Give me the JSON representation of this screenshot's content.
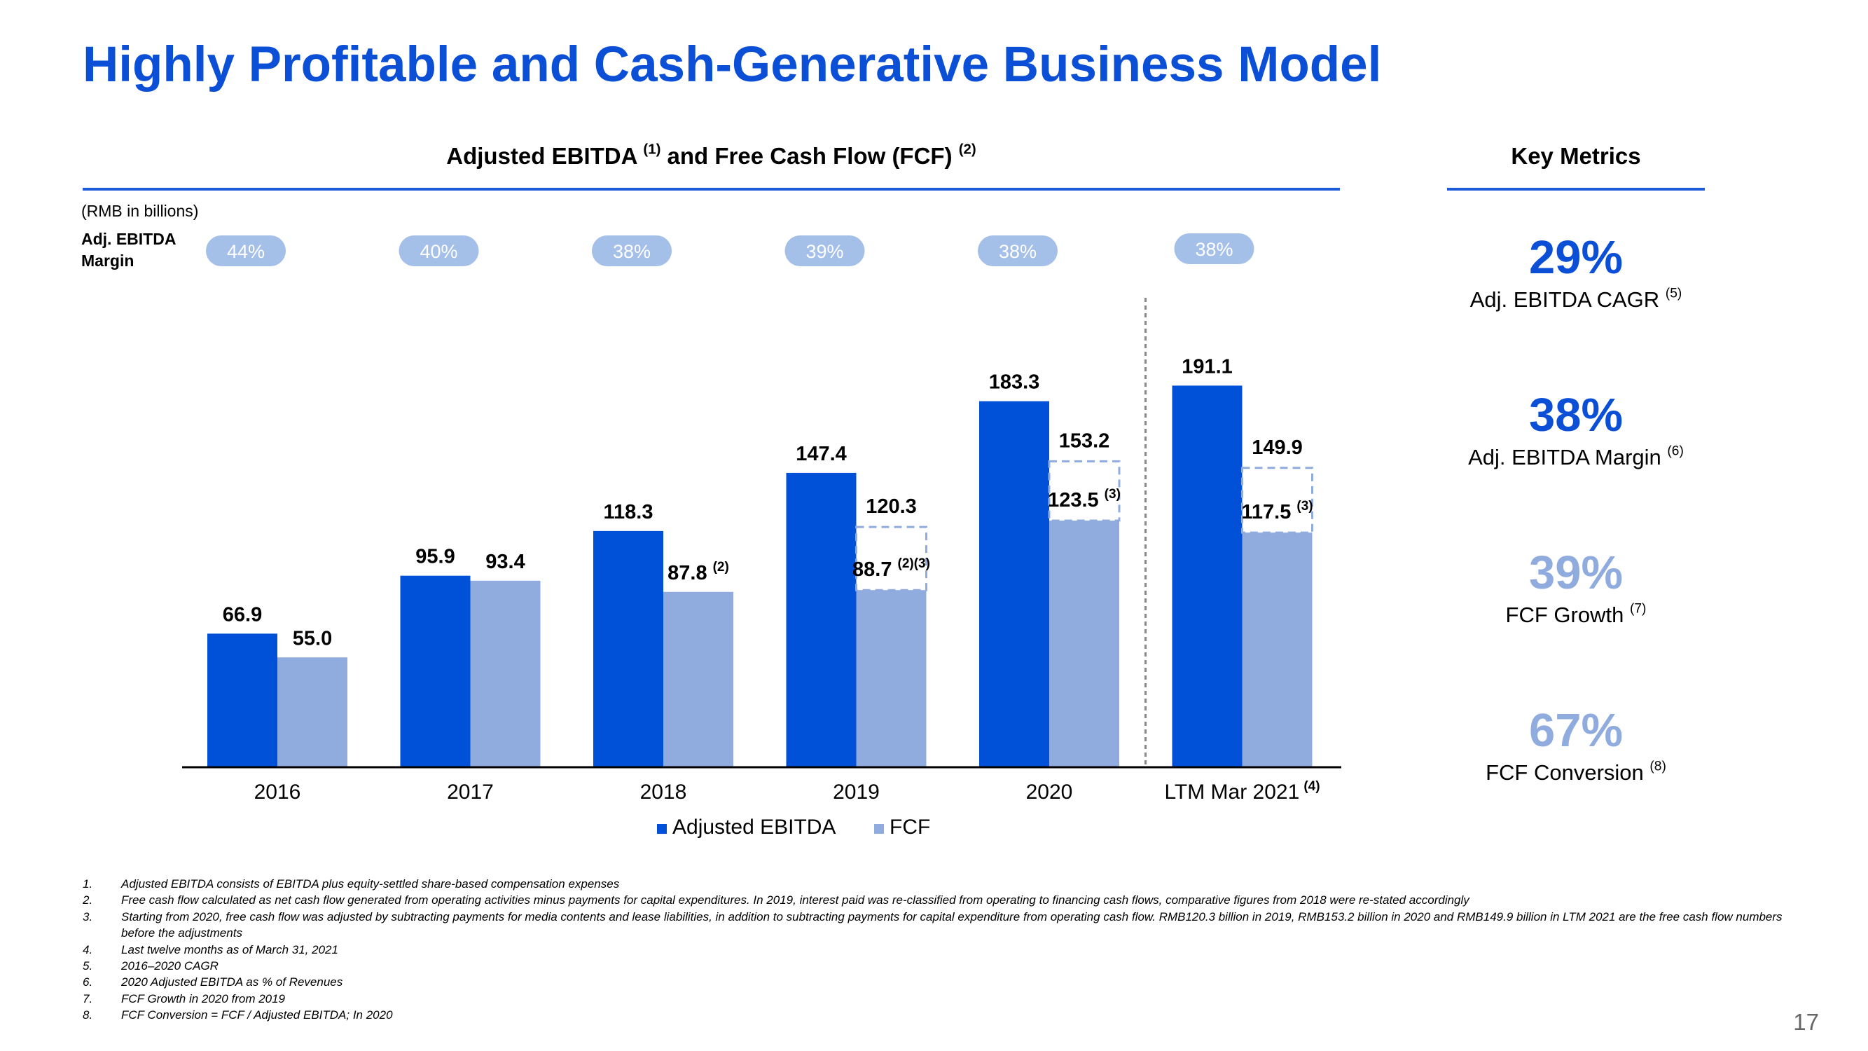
{
  "slide": {
    "title": "Highly Profitable and Cash-Generative Business Model",
    "page_number": "17",
    "accent_color": "#0a4fd6"
  },
  "chart_title": {
    "text": "Adjusted EBITDA ",
    "sup1": "(1)",
    "text2": " and Free Cash Flow (FCF) ",
    "sup2": "(2)"
  },
  "unit_label": "(RMB in billions)",
  "margin_row_label": "Adj. EBITDA Margin",
  "chart_data": {
    "type": "bar",
    "title": "Adjusted EBITDA (1) and Free Cash Flow (FCF) (2)",
    "unit": "(RMB in billions)",
    "categories": [
      "2016",
      "2017",
      "2018",
      "2019",
      "2020",
      "LTM Mar 2021"
    ],
    "category_notes": [
      "",
      "",
      "",
      "",
      "",
      "(4)"
    ],
    "series": [
      {
        "name": "Adjusted EBITDA",
        "color": "#0050d8",
        "values": [
          66.9,
          95.9,
          118.3,
          147.4,
          183.3,
          191.1
        ],
        "labels": [
          "66.9",
          "95.9",
          "118.3",
          "147.4",
          "183.3",
          "191.1"
        ],
        "label_notes": [
          "",
          "",
          "",
          "",
          "",
          ""
        ]
      },
      {
        "name": "FCF",
        "color": "#90acde",
        "values": [
          55.0,
          93.4,
          87.8,
          88.7,
          123.5,
          117.5
        ],
        "labels": [
          "55.0",
          "93.4",
          "87.8",
          "88.7",
          "123.5",
          "117.5"
        ],
        "label_notes": [
          "",
          "",
          "(2)",
          "(2)(3)",
          "(3)",
          "(3)"
        ]
      }
    ],
    "fcf_before_adjustment": [
      null,
      null,
      null,
      120.3,
      153.2,
      149.9
    ],
    "fcf_before_adjustment_labels": [
      "",
      "",
      "",
      "120.3",
      "153.2",
      "149.9"
    ],
    "adj_ebitda_margin": [
      "44%",
      "40%",
      "38%",
      "39%",
      "38%",
      "38%"
    ],
    "ylim": [
      0,
      200
    ],
    "legend_position": "bottom",
    "separator_before_category": 5
  },
  "key_metrics": {
    "title": "Key Metrics",
    "items": [
      {
        "value": "29%",
        "label": "Adj. EBITDA CAGR ",
        "note": "(5)",
        "color": "#0a4fd6"
      },
      {
        "value": "38%",
        "label": "Adj. EBITDA Margin ",
        "note": "(6)",
        "color": "#0a4fd6"
      },
      {
        "value": "39%",
        "label": "FCF Growth ",
        "note": "(7)",
        "color": "#90acde"
      },
      {
        "value": "67%",
        "label": "FCF Conversion ",
        "note": "(8)",
        "color": "#90acde"
      }
    ]
  },
  "footnotes": [
    {
      "num": "1.",
      "text": "Adjusted EBITDA consists of EBITDA plus equity-settled share-based compensation expenses"
    },
    {
      "num": "2.",
      "text": "Free cash flow calculated as net cash flow generated from operating activities minus payments for capital expenditures. In 2019, interest paid was re-classified from operating to financing cash flows, comparative figures from 2018 were re-stated accordingly"
    },
    {
      "num": "3.",
      "text": "Starting from 2020, free cash flow was adjusted by subtracting payments for media contents and lease liabilities, in addition to subtracting payments for capital expenditure from operating cash flow. RMB120.3 billion in 2019, RMB153.2 billion in 2020 and RMB149.9 billion in LTM 2021 are the free cash flow numbers before the adjustments"
    },
    {
      "num": "4.",
      "text": "Last twelve months as of March 31, 2021"
    },
    {
      "num": "5.",
      "text": "2016–2020 CAGR"
    },
    {
      "num": "6.",
      "text": "2020 Adjusted EBITDA as % of Revenues"
    },
    {
      "num": "7.",
      "text": "FCF Growth in 2020 from 2019"
    },
    {
      "num": "8.",
      "text": "FCF Conversion = FCF / Adjusted EBITDA; In 2020"
    }
  ]
}
